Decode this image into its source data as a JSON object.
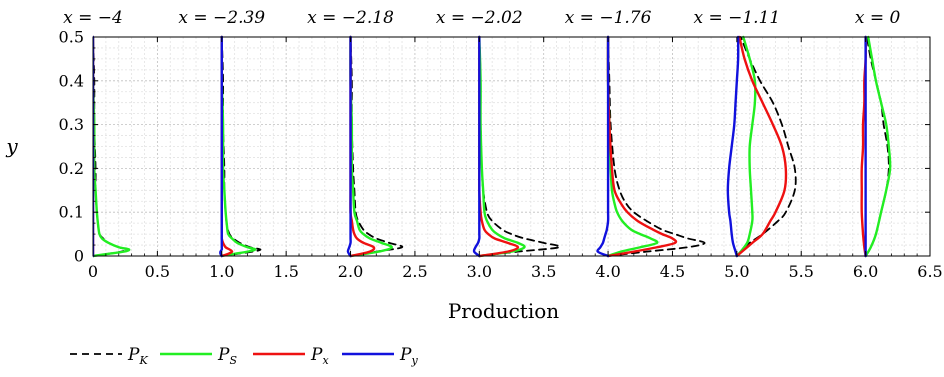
{
  "chart_data": {
    "type": "line",
    "xlabel": "Production",
    "ylabel": "y",
    "xlim": [
      0,
      6.5
    ],
    "ylim": [
      0,
      0.5
    ],
    "x_ticks": [
      "0",
      "0.5",
      "1.0",
      "1.5",
      "2.0",
      "2.5",
      "3.0",
      "3.5",
      "4.0",
      "4.5",
      "5.0",
      "5.5",
      "6.0",
      "6.5"
    ],
    "y_ticks": [
      "0",
      "0.1",
      "0.2",
      "0.3",
      "0.4",
      "0.5"
    ],
    "grid": true,
    "legend_position": "bottom-left",
    "series_styles": [
      {
        "key": "PK",
        "label_main": "P",
        "label_sub": "K",
        "color": "#000000",
        "dash": "7,5"
      },
      {
        "key": "PS",
        "label_main": "P",
        "label_sub": "S",
        "color": "#22ee22",
        "dash": ""
      },
      {
        "key": "Px",
        "label_main": "P",
        "label_sub": "x",
        "color": "#ee1111",
        "dash": ""
      },
      {
        "key": "Py",
        "label_main": "P",
        "label_sub": "y",
        "color": "#1111dd",
        "dash": ""
      }
    ],
    "stations": [
      {
        "label": "x = −4",
        "offset": 0,
        "y": [
          0,
          0.005,
          0.01,
          0.015,
          0.02,
          0.03,
          0.04,
          0.05,
          0.07,
          0.1,
          0.15,
          0.2,
          0.3,
          0.4,
          0.5
        ],
        "series": {
          "PK": [
            0,
            0.12,
            0.22,
            0.26,
            0.2,
            0.12,
            0.08,
            0.05,
            0.04,
            0.03,
            0.02,
            0.02,
            0.01,
            0.01,
            0
          ],
          "PS": [
            0,
            0.12,
            0.24,
            0.28,
            0.2,
            0.12,
            0.07,
            0.05,
            0.04,
            0.03,
            0.02,
            0.01,
            0.01,
            0,
            0
          ],
          "Px": [
            0,
            0,
            0,
            0,
            0,
            0,
            0,
            0,
            0,
            0,
            0,
            0,
            0,
            0,
            0
          ],
          "Py": [
            0,
            0,
            0,
            0,
            0,
            0,
            0,
            0,
            0,
            0,
            0,
            0,
            0,
            0,
            0
          ]
        }
      },
      {
        "label": "x = −2.39",
        "offset": 1,
        "y": [
          0,
          0.005,
          0.01,
          0.015,
          0.02,
          0.03,
          0.04,
          0.05,
          0.07,
          0.1,
          0.15,
          0.2,
          0.3,
          0.4,
          0.5
        ],
        "series": {
          "PK": [
            0,
            0.12,
            0.24,
            0.3,
            0.22,
            0.14,
            0.09,
            0.06,
            0.04,
            0.03,
            0.02,
            0.02,
            0.01,
            0.01,
            0
          ],
          "PS": [
            0,
            0.1,
            0.2,
            0.26,
            0.2,
            0.12,
            0.08,
            0.05,
            0.04,
            0.03,
            0.02,
            0.01,
            0.01,
            0,
            0
          ],
          "Px": [
            0,
            0.05,
            0.08,
            0.06,
            0.03,
            0.01,
            0,
            0,
            0,
            0,
            0,
            0,
            0,
            0,
            0
          ],
          "Py": [
            0,
            -0.01,
            -0.01,
            0,
            0,
            0,
            0,
            0,
            0,
            0,
            0,
            0,
            0,
            0,
            0
          ]
        }
      },
      {
        "label": "x = −2.18",
        "offset": 2,
        "y": [
          0,
          0.01,
          0.02,
          0.03,
          0.04,
          0.05,
          0.06,
          0.08,
          0.1,
          0.15,
          0.2,
          0.3,
          0.4,
          0.5
        ],
        "series": {
          "PK": [
            0,
            0.2,
            0.4,
            0.3,
            0.2,
            0.14,
            0.1,
            0.06,
            0.04,
            0.03,
            0.02,
            0.01,
            0.01,
            0
          ],
          "PS": [
            0,
            0.22,
            0.32,
            0.24,
            0.15,
            0.1,
            0.07,
            0.05,
            0.03,
            0.02,
            0.01,
            0.01,
            0,
            0
          ],
          "Px": [
            0,
            0.15,
            0.18,
            0.1,
            0.05,
            0.03,
            0.02,
            0.01,
            0,
            0,
            0,
            0,
            0,
            0
          ],
          "Py": [
            0,
            -0.02,
            -0.01,
            0,
            0,
            0,
            0,
            0,
            0,
            0,
            0,
            0,
            0,
            0
          ]
        }
      },
      {
        "label": "x = −2.02",
        "offset": 3,
        "y": [
          0,
          0.01,
          0.02,
          0.03,
          0.04,
          0.05,
          0.06,
          0.08,
          0.1,
          0.15,
          0.2,
          0.3,
          0.4,
          0.5
        ],
        "series": {
          "PK": [
            0,
            0.3,
            0.62,
            0.5,
            0.35,
            0.25,
            0.18,
            0.1,
            0.06,
            0.03,
            0.02,
            0.01,
            0.01,
            0
          ],
          "PS": [
            0,
            0.25,
            0.35,
            0.3,
            0.2,
            0.14,
            0.1,
            0.06,
            0.04,
            0.03,
            0.02,
            0.01,
            0.01,
            0
          ],
          "Px": [
            0,
            0.22,
            0.3,
            0.22,
            0.12,
            0.07,
            0.04,
            0.02,
            0.01,
            0,
            0,
            0,
            0,
            0
          ],
          "Py": [
            0,
            -0.04,
            -0.03,
            -0.01,
            0,
            0,
            0,
            0,
            0,
            0,
            0,
            0,
            0,
            0
          ]
        }
      },
      {
        "label": "x = −1.76",
        "offset": 4,
        "y": [
          0,
          0.01,
          0.02,
          0.03,
          0.04,
          0.05,
          0.06,
          0.08,
          0.1,
          0.12,
          0.15,
          0.2,
          0.3,
          0.4,
          0.5
        ],
        "series": {
          "PK": [
            0,
            0.3,
            0.62,
            0.75,
            0.62,
            0.52,
            0.42,
            0.3,
            0.2,
            0.14,
            0.09,
            0.05,
            0.02,
            0.01,
            0
          ],
          "PS": [
            0,
            0.1,
            0.25,
            0.38,
            0.33,
            0.25,
            0.18,
            0.11,
            0.07,
            0.05,
            0.03,
            0.02,
            0.01,
            0,
            0
          ],
          "Px": [
            0,
            0.2,
            0.38,
            0.52,
            0.5,
            0.42,
            0.35,
            0.23,
            0.15,
            0.1,
            0.05,
            0.03,
            0.01,
            0,
            0
          ],
          "Py": [
            0,
            -0.08,
            -0.06,
            -0.04,
            -0.03,
            -0.02,
            -0.01,
            0,
            0,
            0,
            0,
            0,
            0,
            0,
            0
          ]
        }
      },
      {
        "label": "x = −1.11",
        "offset": 5,
        "y": [
          0,
          0.01,
          0.03,
          0.05,
          0.08,
          0.1,
          0.15,
          0.2,
          0.25,
          0.3,
          0.35,
          0.4,
          0.45,
          0.5
        ],
        "series": {
          "PK": [
            0,
            0.03,
            0.1,
            0.2,
            0.32,
            0.38,
            0.45,
            0.45,
            0.4,
            0.35,
            0.28,
            0.18,
            0.1,
            0.03
          ],
          "PS": [
            0,
            0.03,
            0.08,
            0.1,
            0.12,
            0.12,
            0.11,
            0.1,
            0.1,
            0.12,
            0.14,
            0.14,
            0.1,
            0.05
          ],
          "Px": [
            0,
            0.04,
            0.12,
            0.2,
            0.26,
            0.3,
            0.37,
            0.38,
            0.35,
            0.28,
            0.2,
            0.12,
            0.06,
            0.02
          ],
          "Py": [
            0,
            -0.01,
            -0.03,
            -0.04,
            -0.05,
            -0.06,
            -0.07,
            -0.06,
            -0.04,
            -0.02,
            -0.01,
            0,
            0.01,
            0.01
          ]
        }
      },
      {
        "label": "x = 0",
        "offset": 6,
        "y": [
          0,
          0.02,
          0.05,
          0.1,
          0.15,
          0.2,
          0.25,
          0.3,
          0.35,
          0.4,
          0.45,
          0.5
        ],
        "series": {
          "PK": [
            0,
            0.04,
            0.08,
            0.12,
            0.16,
            0.18,
            0.17,
            0.14,
            0.12,
            0.08,
            0.04,
            0.01
          ],
          "PS": [
            0,
            0.04,
            0.08,
            0.12,
            0.16,
            0.19,
            0.18,
            0.16,
            0.12,
            0.08,
            0.05,
            0.02
          ],
          "Px": [
            0,
            -0.01,
            -0.02,
            -0.03,
            -0.03,
            -0.03,
            -0.02,
            -0.02,
            -0.01,
            -0.01,
            0,
            0
          ],
          "Py": [
            0,
            0,
            0,
            0,
            0,
            0,
            0,
            0,
            0,
            0,
            0,
            0
          ]
        }
      }
    ]
  }
}
